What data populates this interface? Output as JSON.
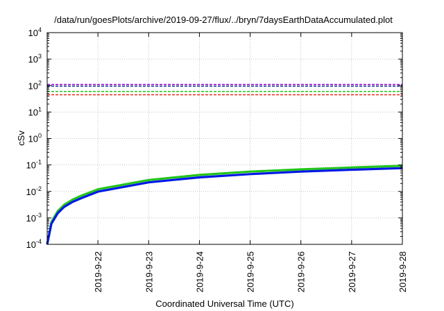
{
  "chart_data": {
    "type": "line",
    "title": "/data/run/goesPlots/archive/2019-09-27/flux/../bryn/7daysEarthDataAccumulated.plot",
    "xlabel": "Coordinated Universal Time (UTC)",
    "ylabel": "cSv",
    "yscale": "log",
    "ylim": [
      0.0001,
      10000
    ],
    "xlim": [
      "2019-09-21",
      "2019-09-28"
    ],
    "grid": true,
    "legend": "none",
    "y_ticks": [
      {
        "value": 0.0001,
        "base": "10",
        "exp": "-4"
      },
      {
        "value": 0.001,
        "base": "10",
        "exp": "-3"
      },
      {
        "value": 0.01,
        "base": "10",
        "exp": "-2"
      },
      {
        "value": 0.1,
        "base": "10",
        "exp": "-1"
      },
      {
        "value": 1,
        "base": "10",
        "exp": "0"
      },
      {
        "value": 10,
        "base": "10",
        "exp": "1"
      },
      {
        "value": 100,
        "base": "10",
        "exp": "2"
      },
      {
        "value": 1000,
        "base": "10",
        "exp": "3"
      },
      {
        "value": 10000,
        "base": "10",
        "exp": "4"
      }
    ],
    "x_ticks": [
      "2019-9-22",
      "2019-9-23",
      "2019-9-24",
      "2019-9-25",
      "2019-9-26",
      "2019-9-27",
      "2019-9-28"
    ],
    "thresholds": [
      {
        "value": 110,
        "color": "#9400d3",
        "style": "dashed"
      },
      {
        "value": 95,
        "color": "#1a3a8c",
        "style": "dashed"
      },
      {
        "value": 60,
        "color": "#22c41a",
        "style": "dashed"
      },
      {
        "value": 45,
        "color": "#e8291c",
        "style": "dashed"
      }
    ],
    "series": [
      {
        "color": "#22c41a",
        "x": [
          "2019-09-21",
          "2019-09-21T02:00",
          "2019-09-21T05:00",
          "2019-09-21T08:00",
          "2019-09-21T12:00",
          "2019-09-21T16:00",
          "2019-09-22",
          "2019-09-23",
          "2019-09-24",
          "2019-09-25",
          "2019-09-26",
          "2019-09-27",
          "2019-09-28"
        ],
        "y": [
          0.0001,
          0.0007,
          0.0018,
          0.0031,
          0.0049,
          0.0068,
          0.012,
          0.027,
          0.042,
          0.056,
          0.068,
          0.08,
          0.093
        ]
      },
      {
        "color": "#0018e6",
        "x": [
          "2019-09-21",
          "2019-09-21T02:00",
          "2019-09-21T05:00",
          "2019-09-21T08:00",
          "2019-09-21T12:00",
          "2019-09-21T16:00",
          "2019-09-22",
          "2019-09-23",
          "2019-09-24",
          "2019-09-25",
          "2019-09-26",
          "2019-09-27",
          "2019-09-28"
        ],
        "y": [
          0.0001,
          0.0006,
          0.0015,
          0.0026,
          0.004,
          0.0055,
          0.0098,
          0.022,
          0.034,
          0.045,
          0.056,
          0.066,
          0.076
        ]
      }
    ]
  }
}
